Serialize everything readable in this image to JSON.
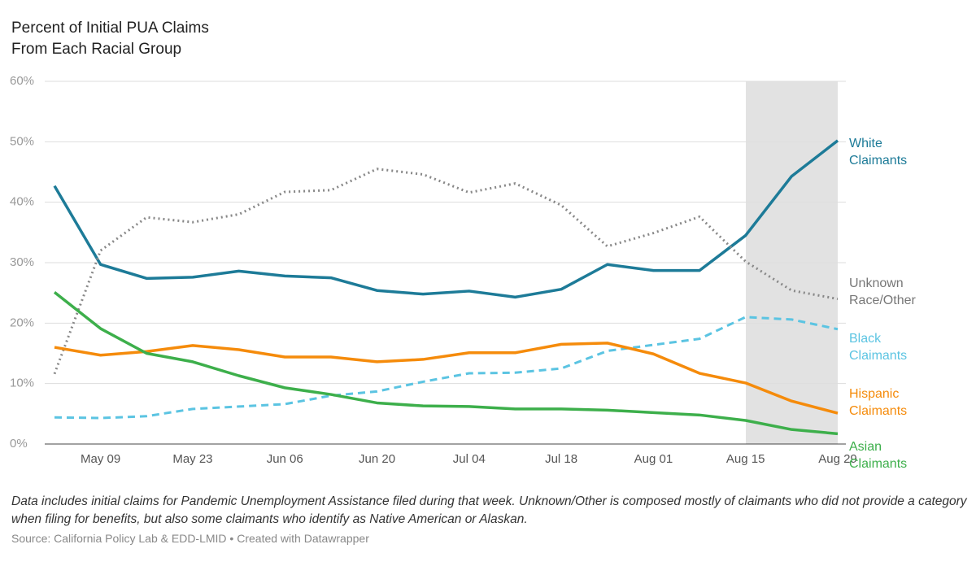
{
  "chart_data": {
    "type": "line",
    "title": "Percent of Initial PUA Claims From Each Racial Group",
    "notes": "Data includes initial claims for Pandemic Unemployment Assistance filed during that week. Unknown/Other is composed mostly of claimants who did not provide a category when filing for benefits, but also some claimants who identify as Native American or Alaskan.",
    "source": "Source: California Policy Lab & EDD-LMID • Created with Datawrapper",
    "categories": [
      null,
      "May 09",
      null,
      "May 23",
      null,
      "Jun 06",
      null,
      "Jun 20",
      null,
      "Jul 04",
      null,
      "Jul 18",
      null,
      "Aug 01",
      null,
      "Aug 15",
      null,
      "Aug 29"
    ],
    "ylim": [
      0,
      60
    ],
    "yticks": [
      {
        "value": 0,
        "label": "0%"
      },
      {
        "value": 10,
        "label": "10%"
      },
      {
        "value": 20,
        "label": "20%"
      },
      {
        "value": 30,
        "label": "30%"
      },
      {
        "value": 40,
        "label": "40%"
      },
      {
        "value": 50,
        "label": "50%"
      },
      {
        "value": 60,
        "label": "60%"
      }
    ],
    "grid": true,
    "series": [
      {
        "name": "White Claimants",
        "color": "#1d7b98",
        "style": "solid",
        "values": [
          42.7,
          29.7,
          27.4,
          27.6,
          28.6,
          27.8,
          27.5,
          25.4,
          24.8,
          25.3,
          24.3,
          25.6,
          29.7,
          28.7,
          28.7,
          34.5,
          44.3,
          50.2
        ]
      },
      {
        "name": "Unknown Race/Other",
        "color": "#888888",
        "style": "dotted",
        "values": [
          11.6,
          32.0,
          37.5,
          36.7,
          38.0,
          41.7,
          42.0,
          45.5,
          44.6,
          41.6,
          43.1,
          39.5,
          32.7,
          34.9,
          37.6,
          30.2,
          25.4,
          24.0
        ]
      },
      {
        "name": "Black Claimants",
        "color": "#5bc4e2",
        "style": "dashed",
        "values": [
          4.4,
          4.3,
          4.6,
          5.8,
          6.2,
          6.6,
          8.0,
          8.7,
          10.3,
          11.7,
          11.8,
          12.5,
          15.4,
          16.4,
          17.4,
          21.0,
          20.6,
          19.0
        ]
      },
      {
        "name": "Hispanic Claimants",
        "color": "#f58b0b",
        "style": "solid",
        "values": [
          16.0,
          14.7,
          15.3,
          16.3,
          15.6,
          14.4,
          14.4,
          13.6,
          14.0,
          15.1,
          15.1,
          16.5,
          16.7,
          14.9,
          11.7,
          10.1,
          7.1,
          5.1
        ]
      },
      {
        "name": "Asian Claimants",
        "color": "#3daf4b",
        "style": "solid",
        "values": [
          25.1,
          19.1,
          15.0,
          13.6,
          11.3,
          9.3,
          8.2,
          6.8,
          6.3,
          6.2,
          5.8,
          5.8,
          5.6,
          5.2,
          4.8,
          3.9,
          2.4,
          1.7
        ]
      }
    ]
  }
}
